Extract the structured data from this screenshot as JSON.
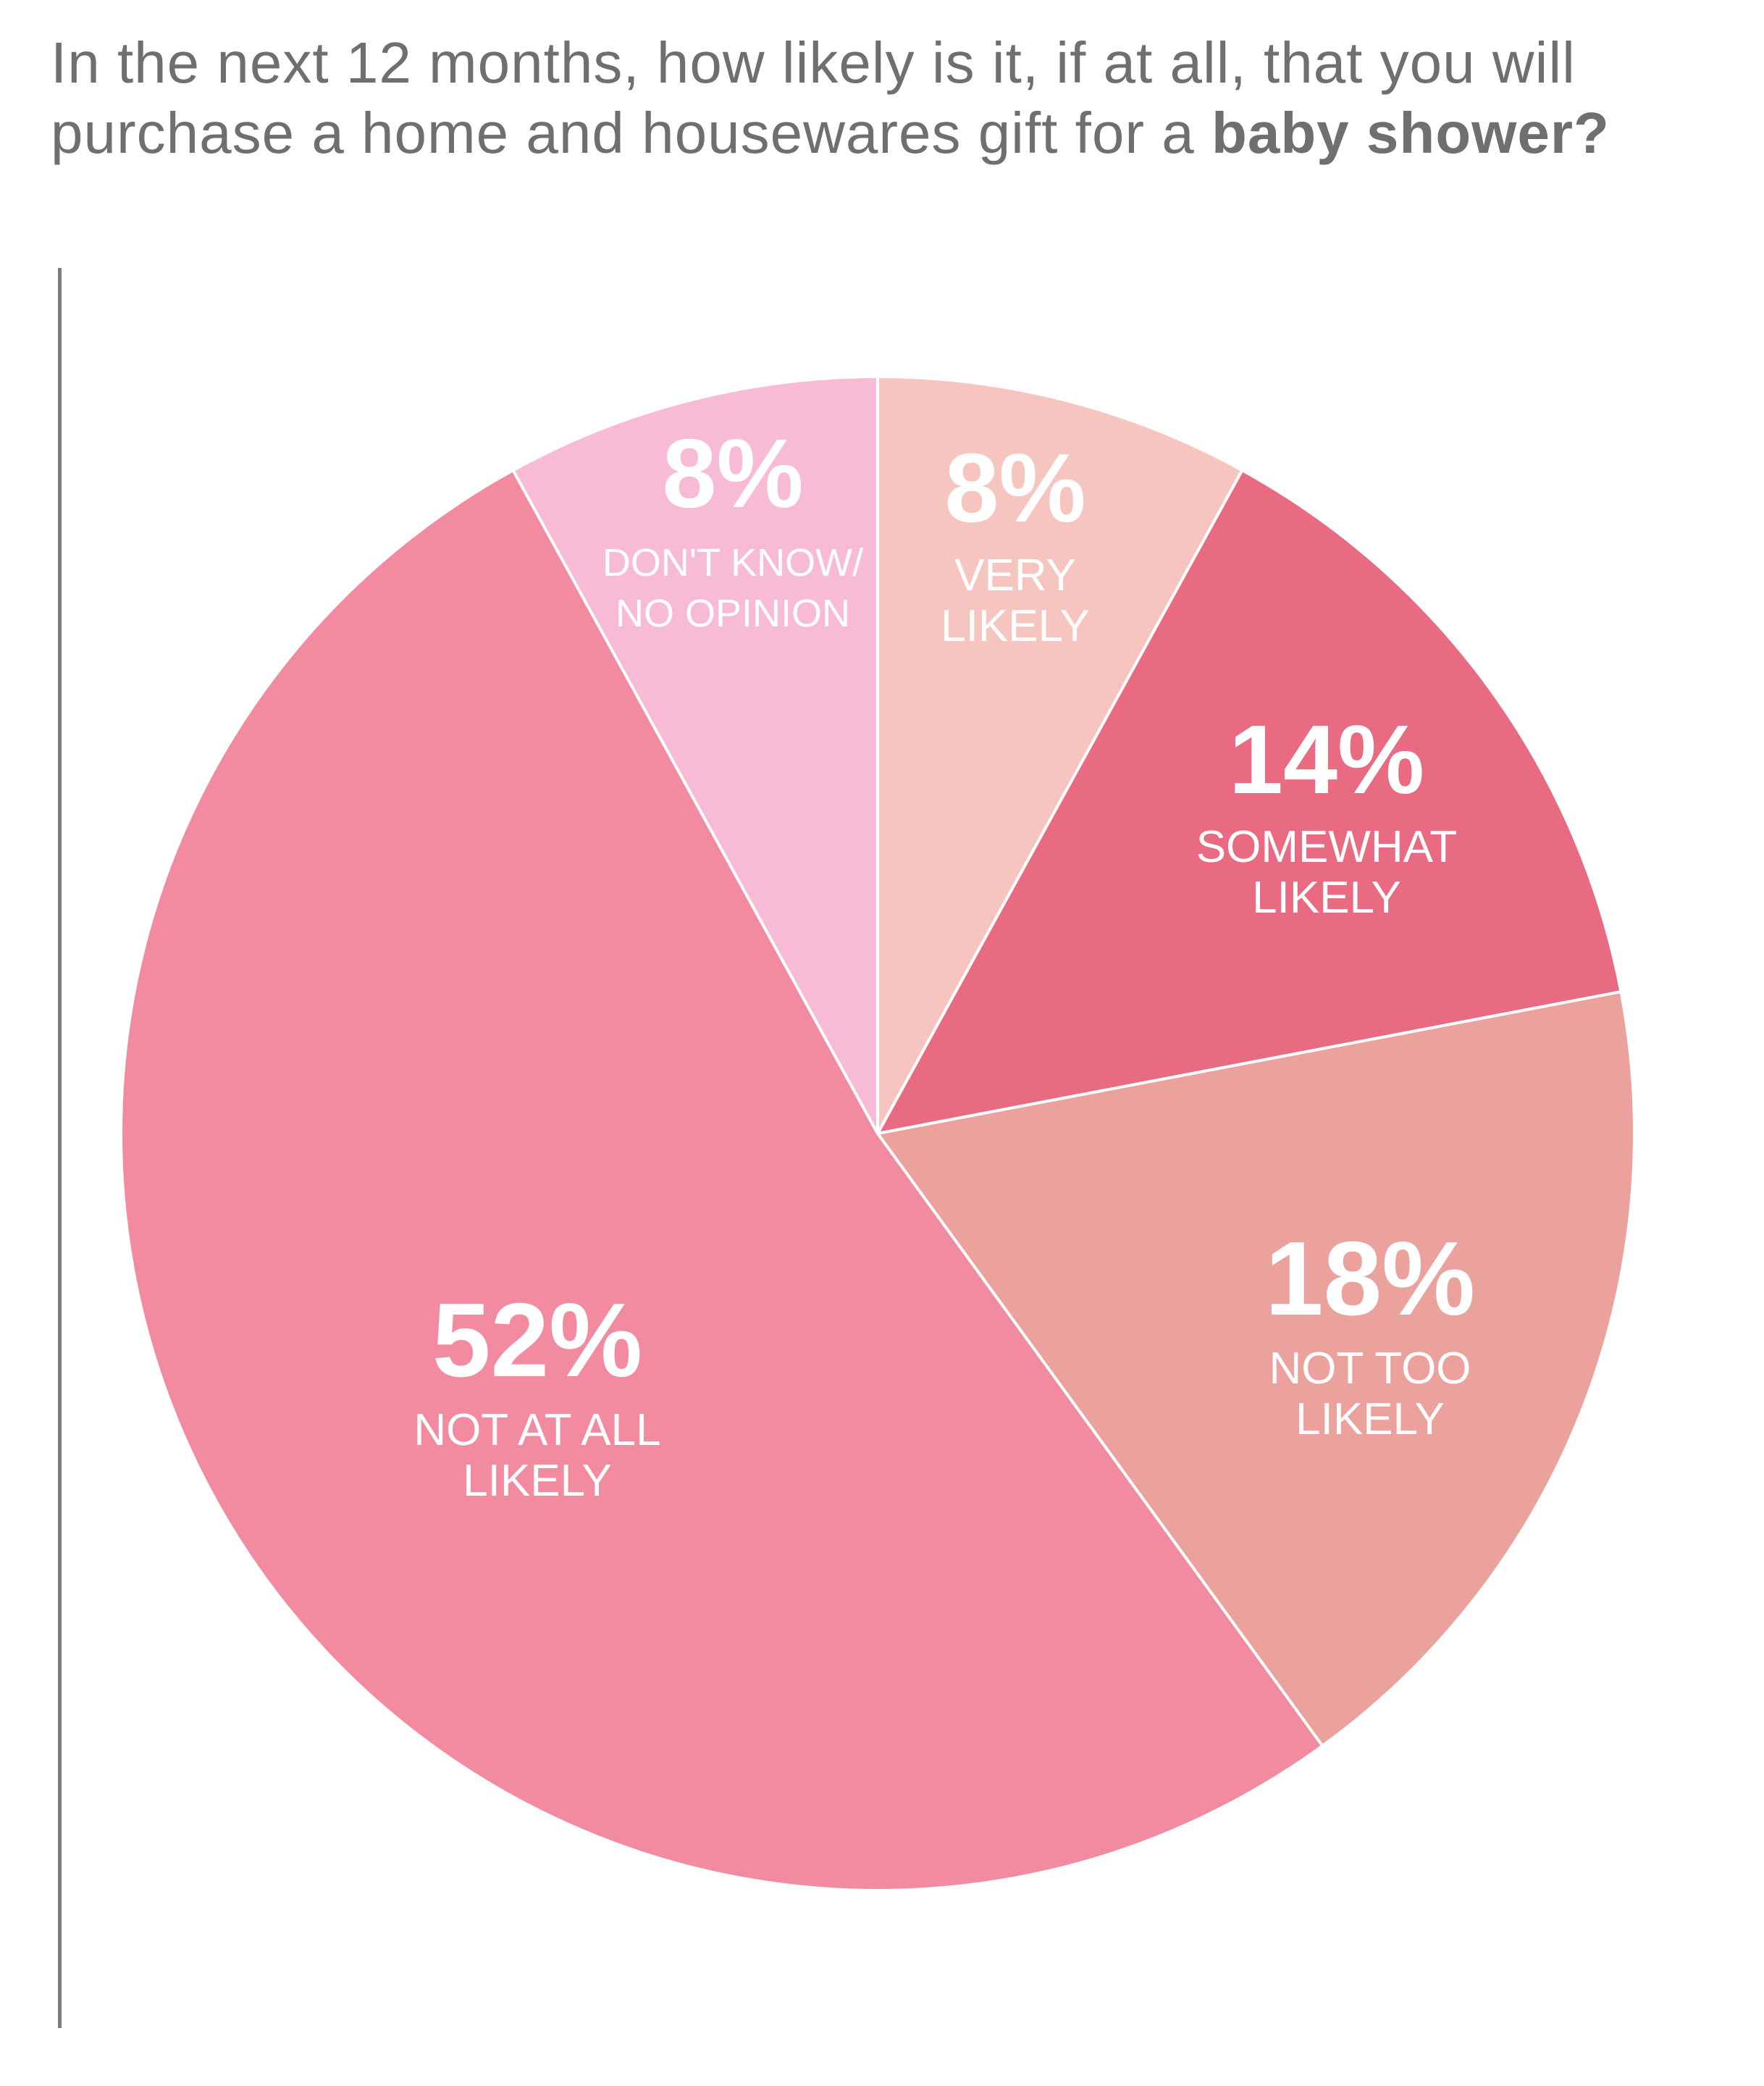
{
  "title": {
    "prefix": "In the next 12 months, how likely is it, if at all, that you will purchase a home and housewares gift for a",
    "emphasis": "baby shower?"
  },
  "chart_data": {
    "type": "pie",
    "start": "12 o'clock",
    "direction": "clockwise",
    "slices": [
      {
        "value": 8,
        "value_label": "8%",
        "label_lines": [
          "VERY",
          "LIKELY"
        ],
        "color": "#f7c5c0"
      },
      {
        "value": 14,
        "value_label": "14%",
        "label_lines": [
          "SOMEWHAT",
          "LIKELY"
        ],
        "color": "#e86b82"
      },
      {
        "value": 18,
        "value_label": "18%",
        "label_lines": [
          "NOT TOO",
          "LIKELY"
        ],
        "color": "#eba19c"
      },
      {
        "value": 52,
        "value_label": "52%",
        "label_lines": [
          "NOT AT ALL",
          "LIKELY"
        ],
        "color": "#f28ba0"
      },
      {
        "value": 8,
        "value_label": "8%",
        "label_lines": [
          "DON'T KNOW/",
          "NO OPINION"
        ],
        "color": "#f8bbd6"
      }
    ]
  }
}
